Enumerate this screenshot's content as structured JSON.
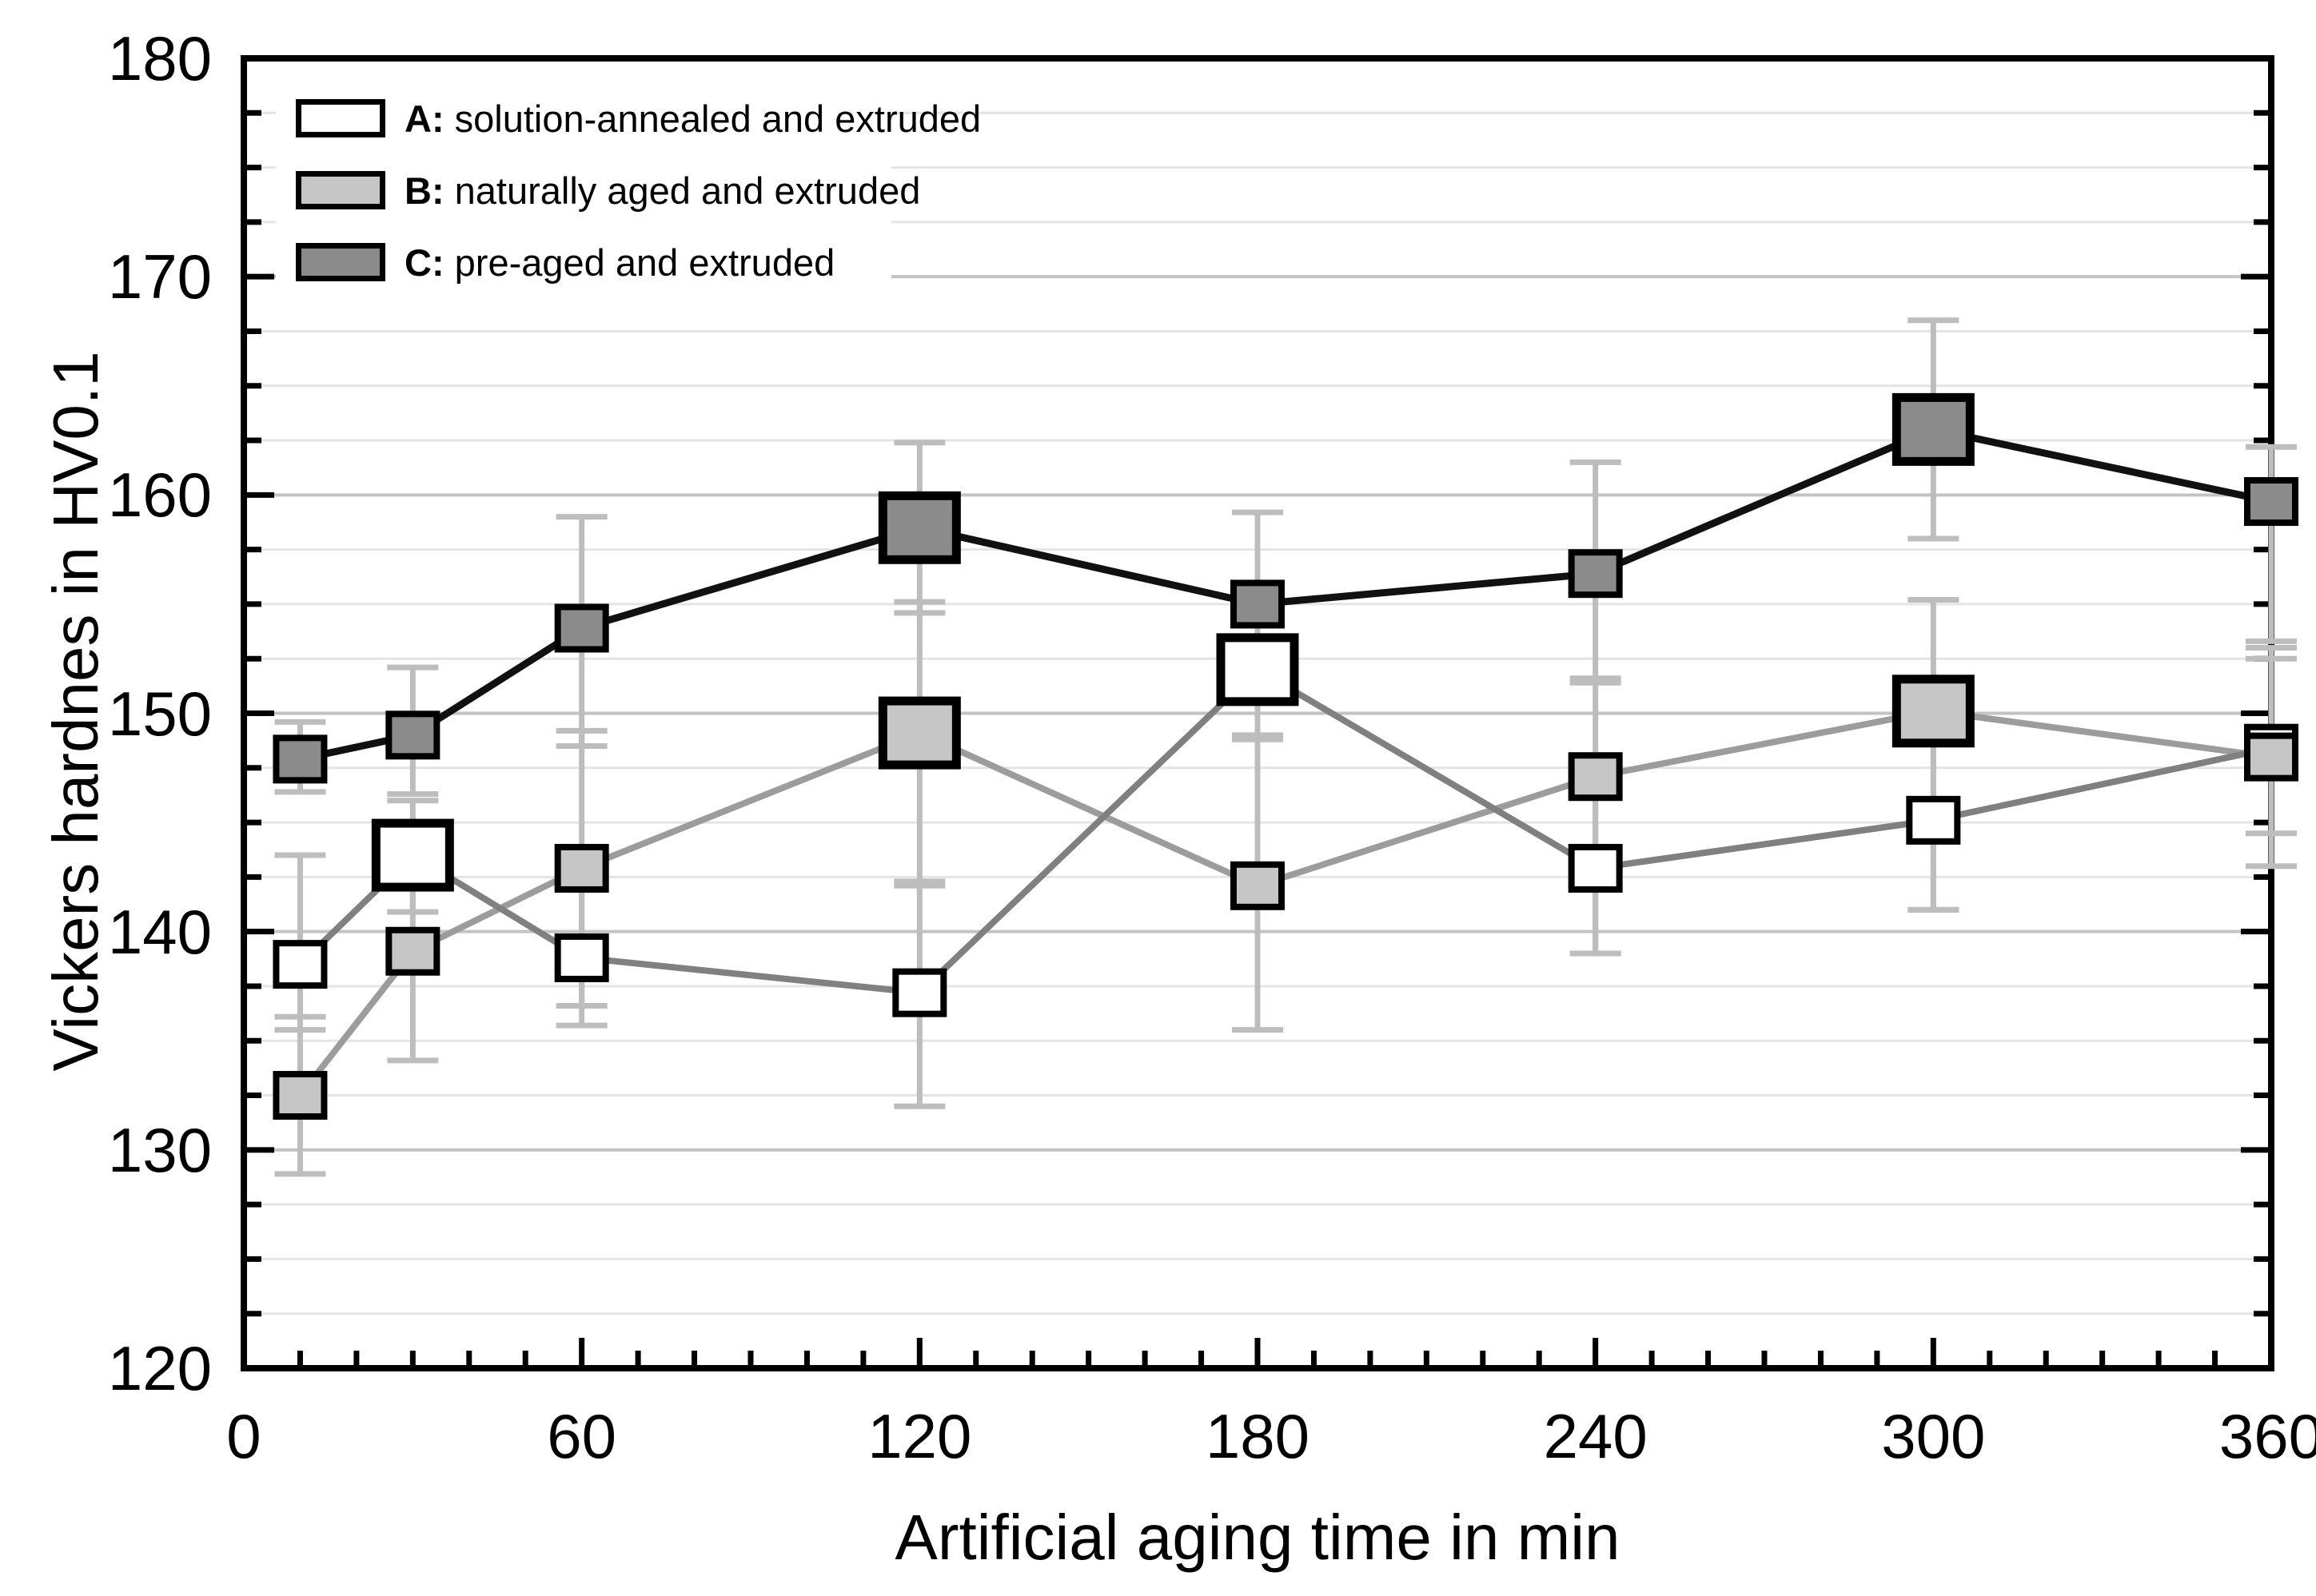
{
  "chart_data": {
    "type": "line",
    "title": "",
    "xlabel": "Artificial aging time in min",
    "ylabel": "Vickers hardnes in HV0.1",
    "xlim": [
      0,
      360
    ],
    "ylim": [
      120,
      180
    ],
    "x_tick_labels": [
      "0",
      "60",
      "120",
      "180",
      "240",
      "300",
      "360"
    ],
    "x_ticks_major": [
      0,
      60,
      120,
      180,
      240,
      300,
      360
    ],
    "x_tick_minor_step": 10,
    "y_tick_labels": [
      "180",
      "170",
      "160",
      "150",
      "140",
      "130",
      "120"
    ],
    "y_ticks_major": [
      180,
      170,
      160,
      150,
      140,
      130,
      120
    ],
    "y_tick_minor_step": 2.5,
    "grid": "horizontal gridlines only, minor every 2.5, major every 10",
    "legend_position": "top-left inside plot",
    "colors": {
      "frame": "#000000",
      "tick": "#000000",
      "grid_major": "#c3c3c3",
      "grid_minor": "#e4e4e4",
      "error_bar": "#bdbdbd",
      "marker_stroke": "#000000"
    },
    "series": [
      {
        "key": "C",
        "legend_prefix": "C:",
        "legend_label": "pre-aged and extruded",
        "marker_fill": "#8b8b8b",
        "line_color": "#111111",
        "line_width": 9,
        "points": [
          {
            "x": 10,
            "y": 147.9,
            "size": "small",
            "err_lo": 146.4,
            "err_hi": 149.6
          },
          {
            "x": 30,
            "y": 149.0,
            "size": "small",
            "err_lo": 146.3,
            "err_hi": 152.1
          },
          {
            "x": 60,
            "y": 153.9,
            "size": "small",
            "err_lo": 148.5,
            "err_hi": 159.0
          },
          {
            "x": 120,
            "y": 158.5,
            "size": "large",
            "err_lo": 154.6,
            "err_hi": 162.4
          },
          {
            "x": 180,
            "y": 155.0,
            "size": "small",
            "err_lo": 151.2,
            "err_hi": 159.2
          },
          {
            "x": 240,
            "y": 156.4,
            "size": "small",
            "err_lo": 151.6,
            "err_hi": 161.5
          },
          {
            "x": 300,
            "y": 163.0,
            "size": "large",
            "err_lo": 158.0,
            "err_hi": 168.0
          },
          {
            "x": 360,
            "y": 159.7,
            "size": "small",
            "err_lo": 153.3,
            "err_hi": 162.2
          }
        ]
      },
      {
        "key": "A",
        "legend_prefix": "A:",
        "legend_label": "solution-annealed and extruded",
        "marker_fill": "#ffffff",
        "line_color": "#808080",
        "line_width": 8,
        "points": [
          {
            "x": 10,
            "y": 138.5,
            "size": "small",
            "err_lo": 135.5,
            "err_hi": 143.5
          },
          {
            "x": 30,
            "y": 143.5,
            "size": "large",
            "err_lo": 140.9,
            "err_hi": 146.0
          },
          {
            "x": 60,
            "y": 138.8,
            "size": "small",
            "err_lo": 135.7,
            "err_hi": 142.0
          },
          {
            "x": 120,
            "y": 137.2,
            "size": "small",
            "err_lo": 132.0,
            "err_hi": 142.3
          },
          {
            "x": 180,
            "y": 152.0,
            "size": "large",
            "err_lo": 149.0,
            "err_hi": 155.3
          },
          {
            "x": 240,
            "y": 142.9,
            "size": "small",
            "err_lo": 139.0,
            "err_hi": 147.3
          },
          {
            "x": 300,
            "y": 145.1,
            "size": "small",
            "err_lo": 141.0,
            "err_hi": 149.3
          },
          {
            "x": 360,
            "y": 148.4,
            "size": "small",
            "err_lo": 144.5,
            "err_hi": 152.5
          }
        ]
      },
      {
        "key": "B",
        "legend_prefix": "B:",
        "legend_label": "naturally aged and extruded",
        "marker_fill": "#c6c6c6",
        "line_color": "#9c9c9c",
        "line_width": 8,
        "points": [
          {
            "x": 10,
            "y": 132.5,
            "size": "small",
            "err_lo": 128.9,
            "err_hi": 136.1
          },
          {
            "x": 30,
            "y": 139.1,
            "size": "small",
            "err_lo": 134.1,
            "err_hi": 144.1
          },
          {
            "x": 60,
            "y": 142.9,
            "size": "small",
            "err_lo": 136.6,
            "err_hi": 149.2
          },
          {
            "x": 120,
            "y": 149.1,
            "size": "large",
            "err_lo": 142.1,
            "err_hi": 155.1
          },
          {
            "x": 180,
            "y": 142.1,
            "size": "small",
            "err_lo": 135.5,
            "err_hi": 148.8
          },
          {
            "x": 240,
            "y": 147.1,
            "size": "small",
            "err_lo": 139.0,
            "err_hi": 151.4
          },
          {
            "x": 300,
            "y": 150.1,
            "size": "large",
            "err_lo": 141.0,
            "err_hi": 155.2
          },
          {
            "x": 360,
            "y": 148.0,
            "size": "small",
            "err_lo": 143.0,
            "err_hi": 153.0
          }
        ]
      }
    ],
    "legend_order": [
      "A",
      "B",
      "C"
    ]
  }
}
